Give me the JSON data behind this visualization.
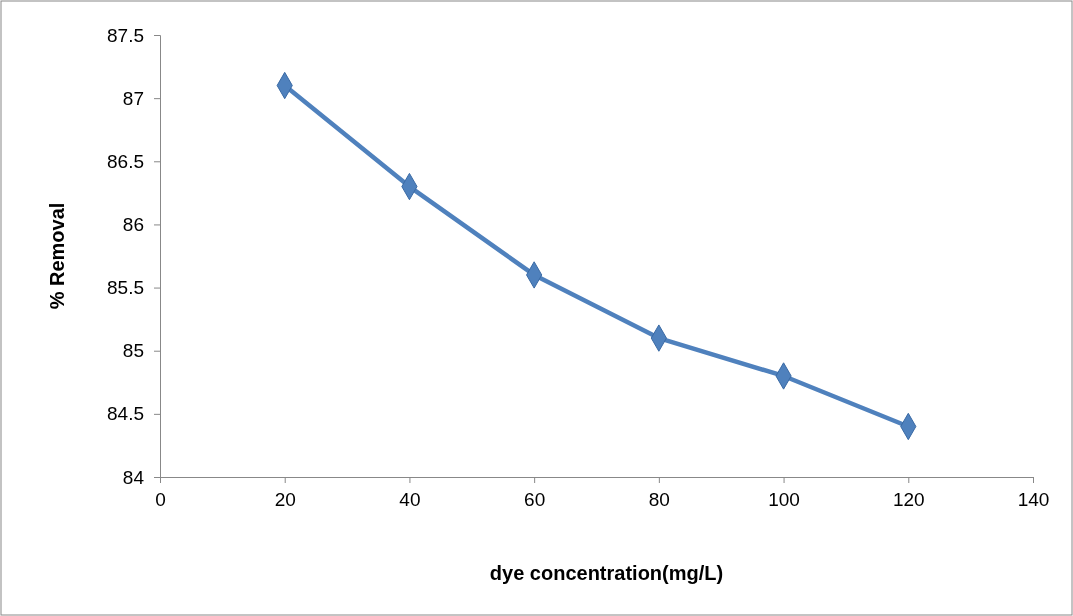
{
  "chart_data": {
    "type": "line",
    "xlabel": "dye concentration(mg/L)",
    "ylabel": "% Removal",
    "x": [
      20,
      40,
      60,
      80,
      100,
      120
    ],
    "series": [
      {
        "color": "#4f81bd",
        "values": [
          87.1,
          86.3,
          85.6,
          85.1,
          84.8,
          84.4
        ]
      }
    ],
    "xlim": [
      0,
      140
    ],
    "xticks": [
      0,
      20,
      40,
      60,
      80,
      100,
      120,
      140
    ],
    "ylim": [
      84,
      87.5
    ],
    "yticks": [
      84,
      84.5,
      85,
      85.5,
      86,
      86.5,
      87,
      87.5
    ],
    "grid": false,
    "marker": "diamond",
    "line_style": "solid"
  }
}
